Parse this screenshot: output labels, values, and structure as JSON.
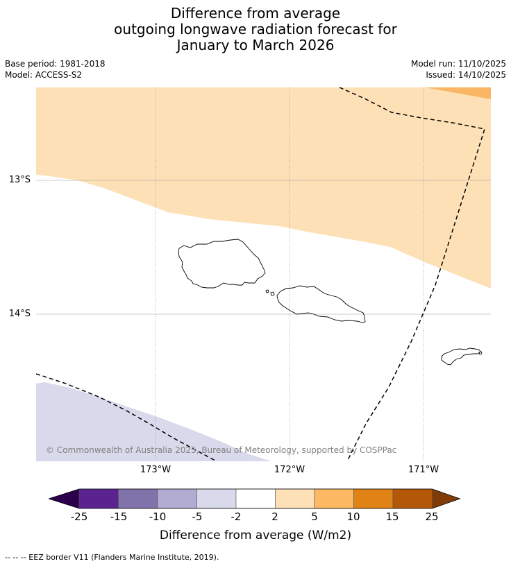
{
  "title": {
    "line1": "Difference from average",
    "line2": "outgoing longwave radiation forecast for",
    "line3": "January to March 2026"
  },
  "meta": {
    "base_period": "Base period: 1981-2018",
    "model": "Model: ACCESS-S2",
    "model_run": "Model run: 11/10/2025",
    "issued": "Issued: 14/10/2025"
  },
  "map": {
    "lat_labels": [
      "13°S",
      "14°S"
    ],
    "lon_labels": [
      "173°W",
      "172°W",
      "171°W"
    ],
    "lat_values": [
      -13,
      -14
    ],
    "lon_values": [
      -173,
      -172,
      -171
    ],
    "extent": {
      "lon_min": -173.9,
      "lon_max": -170.5,
      "lat_max": -12.3,
      "lat_min": -15.1
    },
    "copyright": "© Commonwealth of Australia 2025, Bureau of Meteorology, supported by COSPPac",
    "colors": {
      "light_orange": "#fde0b6",
      "mid_orange": "#fbb665",
      "light_purple": "#d8d9ea",
      "gridline": "#999999",
      "coast": "#000000"
    }
  },
  "colorbar": {
    "tick_labels": [
      "-25",
      "-15",
      "-10",
      "-5",
      "-2",
      "2",
      "5",
      "10",
      "15",
      "25"
    ],
    "colors": [
      "#2d004b",
      "#5b2390",
      "#8073ac",
      "#b2abd2",
      "#d8daeb",
      "#ffffff",
      "#fee0b6",
      "#fdb863",
      "#e08214",
      "#b35806",
      "#7f3b08"
    ],
    "label": "Difference from average (W/m2)"
  },
  "footnote": "--  --  -- EEZ border V11 (Flanders Marine Institute, 2019)."
}
